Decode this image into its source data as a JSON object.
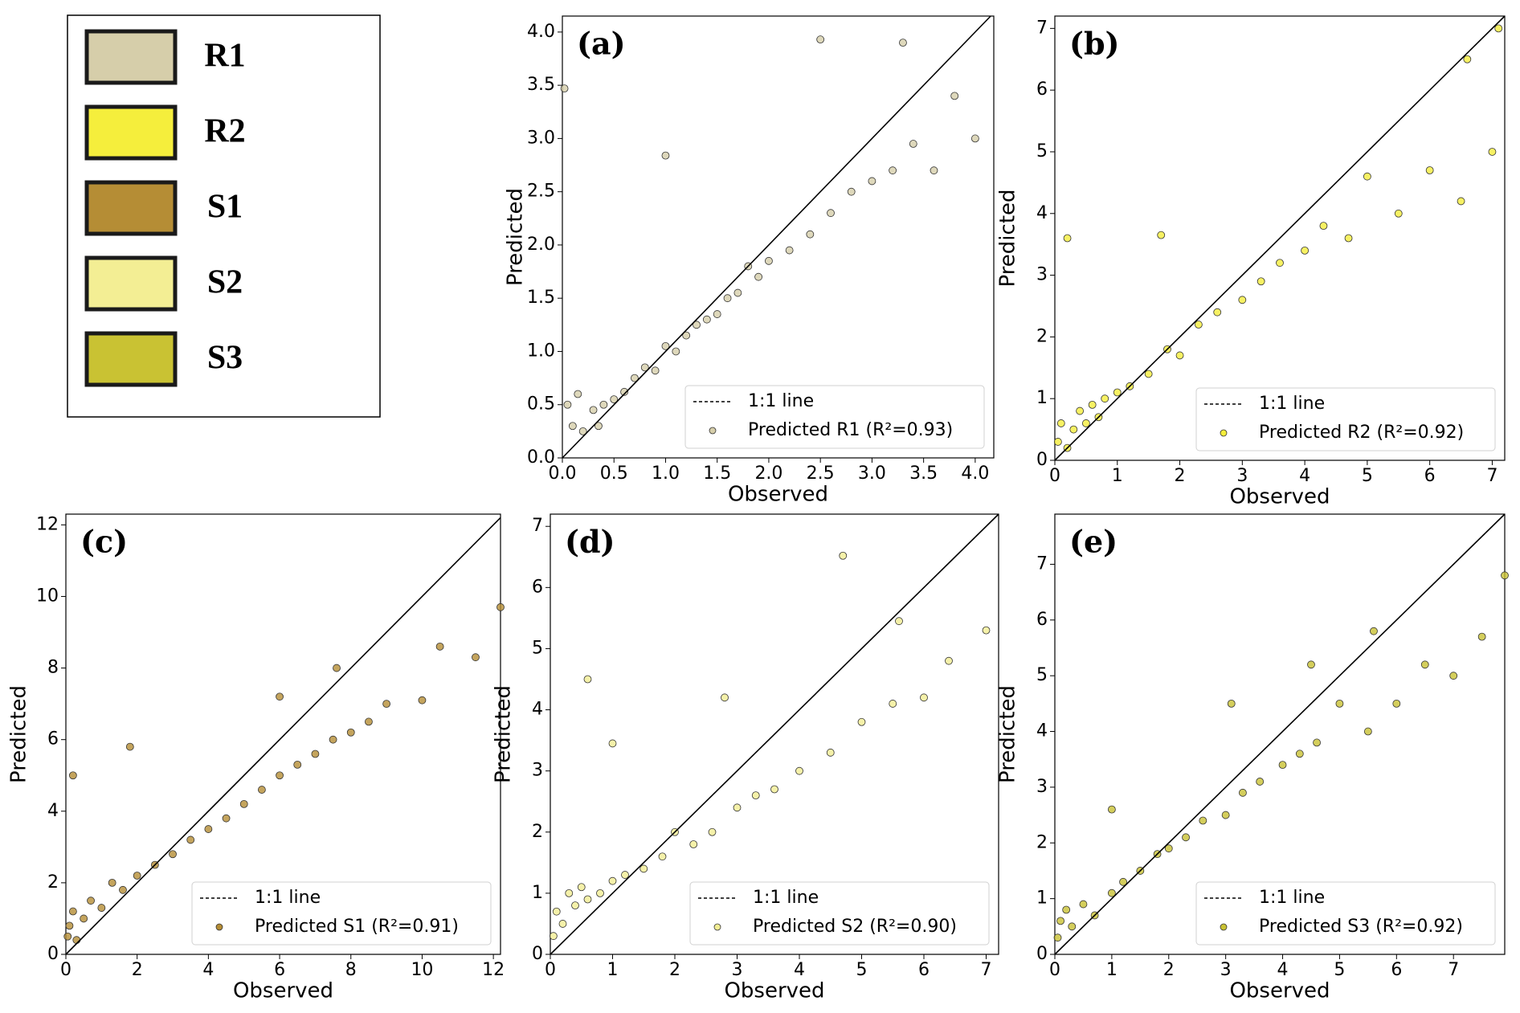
{
  "legend_box": {
    "items": [
      {
        "label": "R1",
        "color": "#d6ceaa"
      },
      {
        "label": "R2",
        "color": "#f5ee3c"
      },
      {
        "label": "S1",
        "color": "#b58d35"
      },
      {
        "label": "S2",
        "color": "#f3ee94"
      },
      {
        "label": "S3",
        "color": "#c9c233"
      }
    ]
  },
  "chart_data": [
    {
      "type": "scatter",
      "label": "(a)",
      "xlabel": "Observed",
      "ylabel": "Predicted",
      "xlim": [
        0,
        4.18
      ],
      "ylim": [
        0,
        4.15
      ],
      "xticks": [
        {
          "value": 0,
          "label": "0.0"
        },
        0.5,
        {
          "value": 1,
          "label": "1.0"
        },
        1.5,
        {
          "value": 2,
          "label": "2.0"
        },
        2.5,
        {
          "value": 3,
          "label": "3.0"
        },
        3.5,
        {
          "value": 4,
          "label": "4.0"
        }
      ],
      "yticks": [
        {
          "value": 0,
          "label": "0.0"
        },
        0.5,
        {
          "value": 1,
          "label": "1.0"
        },
        1.5,
        {
          "value": 2,
          "label": "2.0"
        },
        2.5,
        {
          "value": 3,
          "label": "3.0"
        },
        3.5,
        {
          "value": 4,
          "label": "4.0"
        }
      ],
      "reference_line": {
        "name": "1:1 line",
        "color": "#000000"
      },
      "series": [
        {
          "name": "Predicted R1 (R²=0.93)",
          "color": "#d6ceaa",
          "x": [
            0.05,
            0.1,
            0.15,
            0.2,
            0.3,
            0.35,
            0.4,
            0.5,
            0.6,
            0.7,
            0.8,
            0.9,
            1.0,
            1.1,
            1.2,
            1.3,
            1.4,
            1.5,
            1.6,
            1.7,
            1.8,
            1.9,
            2.0,
            2.2,
            2.4,
            2.6,
            2.8,
            3.0,
            3.2,
            3.4,
            3.6,
            3.8,
            4.0,
            0.02,
            1.0,
            2.5,
            3.3
          ],
          "values": [
            0.5,
            0.3,
            0.6,
            0.25,
            0.45,
            0.3,
            0.5,
            0.55,
            0.62,
            0.75,
            0.85,
            0.82,
            1.05,
            1.0,
            1.15,
            1.25,
            1.3,
            1.35,
            1.5,
            1.55,
            1.8,
            1.7,
            1.85,
            1.95,
            2.1,
            2.3,
            2.5,
            2.6,
            2.7,
            2.95,
            2.7,
            3.4,
            3.0,
            3.47,
            2.84,
            3.93,
            3.9
          ]
        }
      ]
    },
    {
      "type": "scatter",
      "label": "(b)",
      "xlabel": "Observed",
      "ylabel": "Predicted",
      "xlim": [
        0,
        7.2
      ],
      "ylim": [
        0,
        7.2
      ],
      "xticks": [
        0,
        1,
        2,
        3,
        4,
        5,
        6,
        7
      ],
      "yticks": [
        0,
        1,
        2,
        3,
        4,
        5,
        6,
        7
      ],
      "reference_line": {
        "name": "1:1 line",
        "color": "#000000"
      },
      "series": [
        {
          "name": "Predicted R2 (R²=0.92)",
          "color": "#f5ee3c",
          "x": [
            0.05,
            0.1,
            0.2,
            0.3,
            0.4,
            0.5,
            0.6,
            0.7,
            0.8,
            1.0,
            1.2,
            1.5,
            1.8,
            2.0,
            2.3,
            2.6,
            3.0,
            3.3,
            3.6,
            4.0,
            4.3,
            4.7,
            5.0,
            5.5,
            6.0,
            6.5,
            7.0,
            0.2,
            1.7,
            6.6,
            7.1
          ],
          "values": [
            0.3,
            0.6,
            0.2,
            0.5,
            0.8,
            0.6,
            0.9,
            0.7,
            1.0,
            1.1,
            1.2,
            1.4,
            1.8,
            1.7,
            2.2,
            2.4,
            2.6,
            2.9,
            3.2,
            3.4,
            3.8,
            3.6,
            4.6,
            4.0,
            4.7,
            4.2,
            5.0,
            3.6,
            3.65,
            6.5,
            7.0
          ]
        }
      ]
    },
    {
      "type": "scatter",
      "label": "(c)",
      "xlabel": "Observed",
      "ylabel": "Predicted",
      "xlim": [
        0,
        12.2
      ],
      "ylim": [
        0,
        12.3
      ],
      "xticks": [
        0,
        2,
        4,
        6,
        8,
        10,
        12
      ],
      "yticks": [
        0,
        2,
        4,
        6,
        8,
        10,
        12
      ],
      "reference_line": {
        "name": "1:1 line",
        "color": "#000000"
      },
      "series": [
        {
          "name": "Predicted S1 (R²=0.91)",
          "color": "#b58d35",
          "x": [
            0.05,
            0.1,
            0.2,
            0.3,
            0.5,
            0.7,
            1.0,
            1.3,
            1.6,
            2.0,
            2.5,
            3.0,
            3.5,
            4.0,
            4.5,
            5.0,
            5.5,
            6.0,
            6.5,
            7.0,
            7.5,
            8.0,
            8.5,
            9.0,
            10.0,
            10.5,
            11.5,
            12.2,
            0.2,
            1.8,
            6.0,
            7.6
          ],
          "values": [
            0.5,
            0.8,
            1.2,
            0.4,
            1.0,
            1.5,
            1.3,
            2.0,
            1.8,
            2.2,
            2.5,
            2.8,
            3.2,
            3.5,
            3.8,
            4.2,
            4.6,
            5.0,
            5.3,
            5.6,
            6.0,
            6.2,
            6.5,
            7.0,
            7.1,
            8.6,
            8.3,
            9.7,
            5.0,
            5.8,
            7.2,
            8.0
          ]
        }
      ]
    },
    {
      "type": "scatter",
      "label": "(d)",
      "xlabel": "Observed",
      "ylabel": "Predicted",
      "xlim": [
        0,
        7.2
      ],
      "ylim": [
        0,
        7.2
      ],
      "xticks": [
        0,
        1,
        2,
        3,
        4,
        5,
        6,
        7
      ],
      "yticks": [
        0,
        1,
        2,
        3,
        4,
        5,
        6,
        7
      ],
      "reference_line": {
        "name": "1:1 line",
        "color": "#000000"
      },
      "series": [
        {
          "name": "Predicted S2 (R²=0.90)",
          "color": "#f3ee94",
          "x": [
            0.05,
            0.1,
            0.2,
            0.3,
            0.4,
            0.5,
            0.6,
            0.8,
            1.0,
            1.2,
            1.5,
            1.8,
            2.0,
            2.3,
            2.6,
            3.0,
            3.3,
            3.6,
            4.0,
            4.5,
            5.0,
            5.5,
            6.0,
            6.4,
            7.0,
            0.6,
            1.0,
            2.8,
            4.7,
            5.6
          ],
          "values": [
            0.3,
            0.7,
            0.5,
            1.0,
            0.8,
            1.1,
            0.9,
            1.0,
            1.2,
            1.3,
            1.4,
            1.6,
            2.0,
            1.8,
            2.0,
            2.4,
            2.6,
            2.7,
            3.0,
            3.3,
            3.8,
            4.1,
            4.2,
            4.8,
            5.3,
            4.5,
            3.45,
            4.2,
            6.52,
            5.45
          ]
        }
      ]
    },
    {
      "type": "scatter",
      "label": "(e)",
      "xlabel": "Observed",
      "ylabel": "Predicted",
      "xlim": [
        0,
        7.9
      ],
      "ylim": [
        0,
        7.9
      ],
      "xticks": [
        0,
        1,
        2,
        3,
        4,
        5,
        6,
        7
      ],
      "yticks": [
        0,
        1,
        2,
        3,
        4,
        5,
        6,
        7
      ],
      "reference_line": {
        "name": "1:1 line",
        "color": "#000000"
      },
      "series": [
        {
          "name": "Predicted S3 (R²=0.92)",
          "color": "#c9c233",
          "x": [
            0.05,
            0.1,
            0.2,
            0.3,
            0.5,
            0.7,
            1.0,
            1.2,
            1.5,
            1.8,
            2.0,
            2.3,
            2.6,
            3.0,
            3.3,
            3.6,
            4.0,
            4.3,
            4.6,
            5.0,
            5.5,
            6.0,
            6.5,
            7.0,
            7.5,
            7.9,
            1.0,
            3.1,
            4.5,
            5.6
          ],
          "values": [
            0.3,
            0.6,
            0.8,
            0.5,
            0.9,
            0.7,
            1.1,
            1.3,
            1.5,
            1.8,
            1.9,
            2.1,
            2.4,
            2.5,
            2.9,
            3.1,
            3.4,
            3.6,
            3.8,
            4.5,
            4.0,
            4.5,
            5.2,
            5.0,
            5.7,
            6.8,
            2.6,
            4.5,
            5.2,
            5.8
          ]
        }
      ]
    }
  ]
}
